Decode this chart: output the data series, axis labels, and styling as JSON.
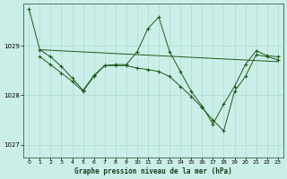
{
  "title": "Graphe pression niveau de la mer (hPa)",
  "bg_color": "#cceee8",
  "grid_color": "#aaddcc",
  "line_color": "#1a5c1a",
  "ylim": [
    1026.75,
    1029.85
  ],
  "yticks": [
    1027,
    1028,
    1029
  ],
  "xlim": [
    -0.5,
    23.5
  ],
  "xticks": [
    0,
    1,
    2,
    3,
    4,
    5,
    6,
    7,
    8,
    9,
    10,
    11,
    12,
    13,
    14,
    15,
    16,
    17,
    18,
    19,
    20,
    21,
    22,
    23
  ],
  "series1_x": [
    0,
    1,
    2,
    3,
    4,
    5,
    6,
    7,
    8,
    9,
    10,
    11,
    12,
    13,
    14,
    15,
    16,
    17,
    18,
    19,
    20,
    21,
    22,
    23
  ],
  "series1_y": [
    1029.75,
    1028.92,
    1028.78,
    1028.58,
    1028.35,
    1028.1,
    1028.4,
    1028.6,
    1028.62,
    1028.62,
    1028.88,
    1029.35,
    1029.58,
    1028.88,
    1028.48,
    1028.08,
    1027.78,
    1027.42,
    1027.82,
    1028.18,
    1028.62,
    1028.9,
    1028.8,
    1028.78
  ],
  "series2_x": [
    1,
    23
  ],
  "series2_y": [
    1028.92,
    1028.68
  ],
  "series3_x": [
    1,
    2,
    3,
    4,
    5,
    6,
    7,
    8,
    9,
    10,
    11,
    12,
    13,
    14,
    15,
    16,
    17,
    18,
    19,
    20,
    21,
    22,
    23
  ],
  "series3_y": [
    1028.78,
    1028.62,
    1028.45,
    1028.28,
    1028.08,
    1028.38,
    1028.6,
    1028.6,
    1028.6,
    1028.55,
    1028.52,
    1028.48,
    1028.38,
    1028.18,
    1027.98,
    1027.75,
    1027.5,
    1027.28,
    1028.08,
    1028.38,
    1028.82,
    1028.78,
    1028.72
  ]
}
